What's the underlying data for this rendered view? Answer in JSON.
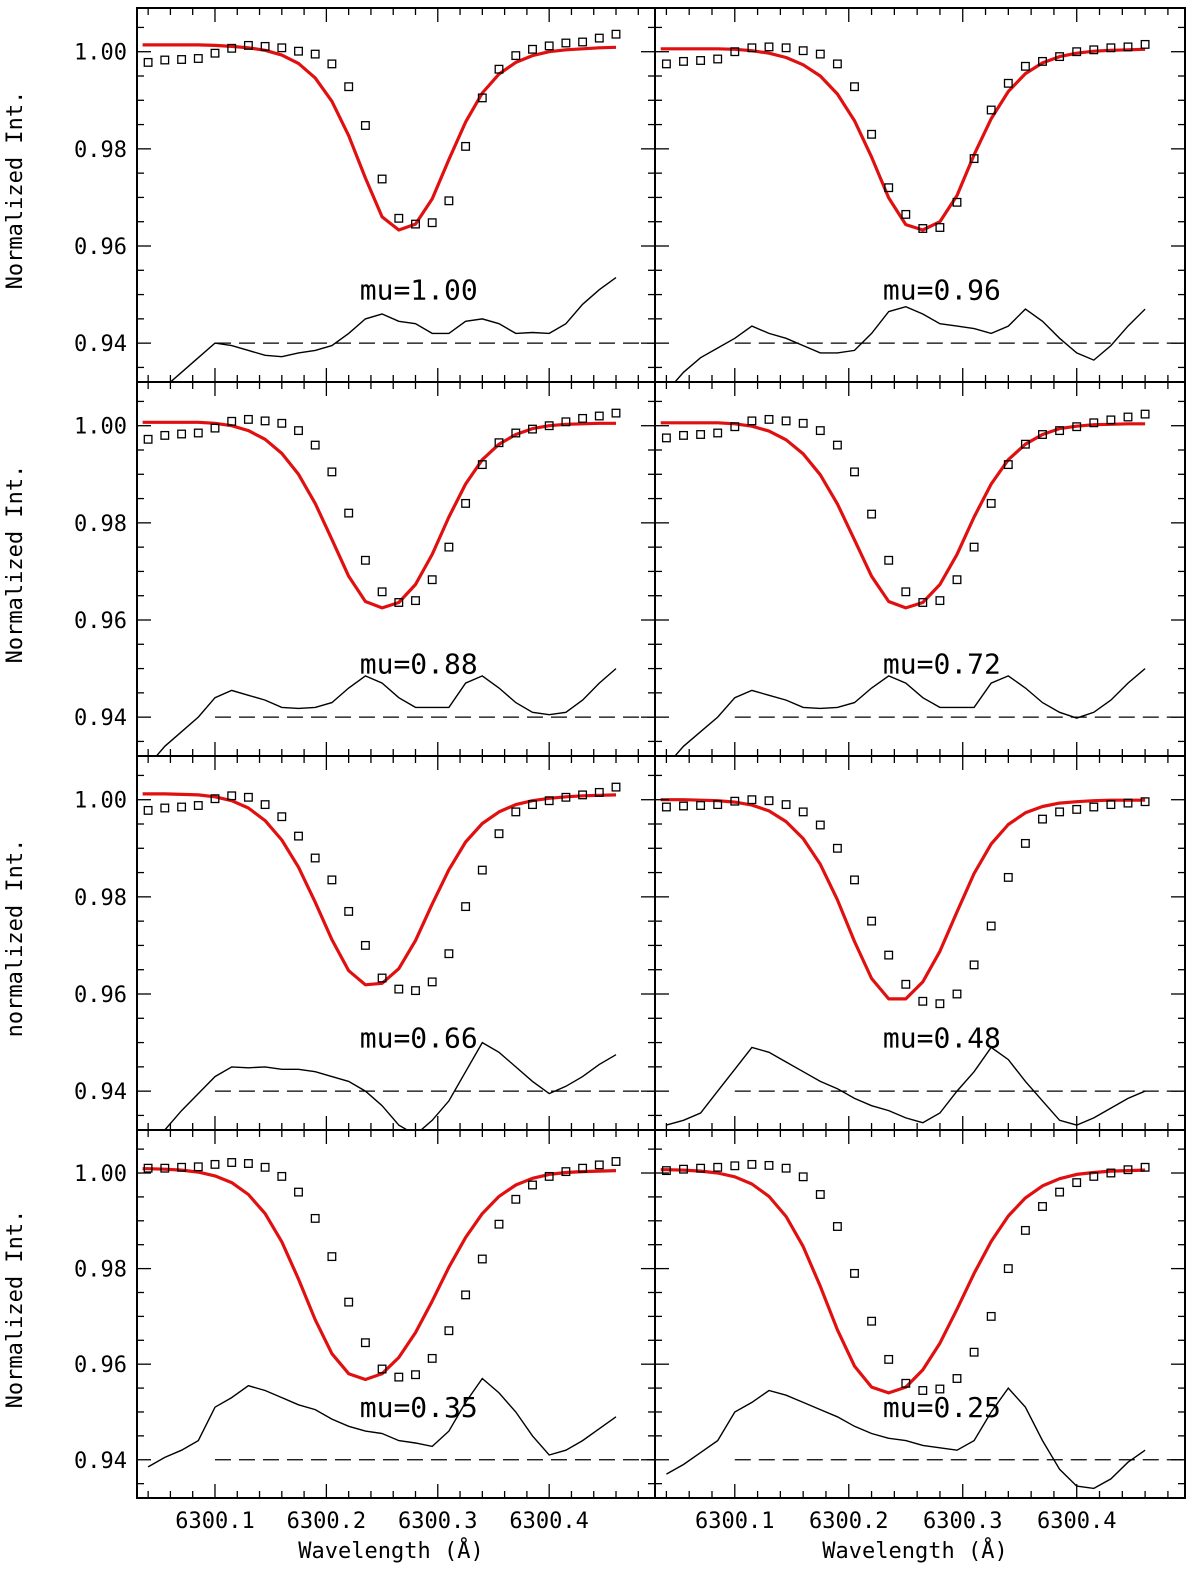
{
  "chart_data": {
    "type": "line",
    "layout": "4 rows x 2 columns",
    "xlabel": "Wavelength (Å)",
    "ylabel_left": [
      "Normalized Int.",
      "Normalized Int.",
      "normalized Int.",
      "Normalized Int."
    ],
    "xlim": [
      6300.03,
      6300.495
    ],
    "ylim": [
      0.932,
      1.009
    ],
    "x_ticks": [
      6300.1,
      6300.2,
      6300.3,
      6300.4
    ],
    "x_tick_labels": [
      "6300.1",
      "6300.2",
      "6300.3",
      "6300.4"
    ],
    "y_ticks": [
      0.94,
      0.96,
      0.98,
      1.0
    ],
    "y_tick_labels": [
      "0.94",
      "0.96",
      "0.98",
      "1.00"
    ],
    "reference_line_y": 0.94,
    "colors": {
      "fit": "#e01010",
      "observed": "#000000",
      "residual": "#000000",
      "reference": "#000000"
    },
    "x": [
      6300.04,
      6300.055,
      6300.07,
      6300.085,
      6300.1,
      6300.115,
      6300.13,
      6300.145,
      6300.16,
      6300.175,
      6300.19,
      6300.205,
      6300.22,
      6300.235,
      6300.25,
      6300.265,
      6300.28,
      6300.295,
      6300.31,
      6300.325,
      6300.34,
      6300.355,
      6300.37,
      6300.385,
      6300.4,
      6300.415,
      6300.43,
      6300.445,
      6300.46
    ],
    "panels": [
      {
        "label": "mu=1.00",
        "observed": [
          0.9978,
          0.9983,
          0.9984,
          0.9986,
          0.9997,
          1.0007,
          1.0013,
          1.0011,
          1.0008,
          1.0001,
          0.9995,
          0.9975,
          0.9928,
          0.9848,
          0.9738,
          0.9657,
          0.9645,
          0.9648,
          0.9693,
          0.9805,
          0.9905,
          0.9964,
          0.9992,
          1.0005,
          1.0012,
          1.0018,
          1.002,
          1.0028,
          1.0036
        ],
        "fit": [
          1.0014,
          1.0014,
          1.0014,
          1.0014,
          1.0013,
          1.0011,
          1.0008,
          1.0003,
          0.9993,
          0.9976,
          0.9946,
          0.9898,
          0.9827,
          0.974,
          0.966,
          0.9633,
          0.9645,
          0.9697,
          0.9778,
          0.9855,
          0.9915,
          0.9954,
          0.9978,
          0.9992,
          1.0,
          1.0004,
          1.0006,
          1.0008,
          1.0009
        ],
        "residual": [
          0.927,
          0.931,
          0.934,
          0.937,
          0.94,
          0.9395,
          0.9385,
          0.9375,
          0.9372,
          0.938,
          0.9385,
          0.9395,
          0.942,
          0.945,
          0.946,
          0.9445,
          0.944,
          0.942,
          0.942,
          0.9445,
          0.945,
          0.944,
          0.942,
          0.9422,
          0.942,
          0.944,
          0.948,
          0.951,
          0.9535
        ]
      },
      {
        "label": "mu=0.96",
        "observed": [
          0.9975,
          0.998,
          0.9982,
          0.9985,
          1.0,
          1.0008,
          1.001,
          1.0008,
          1.0002,
          0.9995,
          0.9975,
          0.9928,
          0.983,
          0.972,
          0.9665,
          0.9636,
          0.9638,
          0.969,
          0.978,
          0.988,
          0.9935,
          0.997,
          0.998,
          0.999,
          1.0,
          1.0004,
          1.0008,
          1.001,
          1.0015
        ],
        "fit": [
          1.0006,
          1.0006,
          1.0006,
          1.0006,
          1.0005,
          1.0002,
          0.9997,
          0.9988,
          0.9973,
          0.995,
          0.9913,
          0.9858,
          0.9783,
          0.9699,
          0.9644,
          0.9633,
          0.965,
          0.9704,
          0.9788,
          0.9862,
          0.9918,
          0.9955,
          0.9977,
          0.999,
          0.9997,
          1.0001,
          1.0003,
          1.0004,
          1.0005
        ],
        "residual": [
          0.93,
          0.934,
          0.937,
          0.939,
          0.941,
          0.9435,
          0.942,
          0.941,
          0.9395,
          0.938,
          0.938,
          0.9385,
          0.942,
          0.9465,
          0.9475,
          0.946,
          0.944,
          0.9435,
          0.943,
          0.942,
          0.9435,
          0.947,
          0.9445,
          0.941,
          0.938,
          0.9365,
          0.9395,
          0.9435,
          0.947
        ]
      },
      {
        "label": "mu=0.88",
        "observed": [
          0.9972,
          0.998,
          0.9983,
          0.9985,
          0.9995,
          1.0009,
          1.0013,
          1.001,
          1.0005,
          0.999,
          0.996,
          0.9905,
          0.982,
          0.9723,
          0.9658,
          0.9636,
          0.964,
          0.9683,
          0.975,
          0.984,
          0.992,
          0.9965,
          0.9985,
          0.9993,
          1.0,
          1.0008,
          1.0015,
          1.002,
          1.0026
        ],
        "fit": [
          1.0007,
          1.0007,
          1.0007,
          1.0007,
          1.0005,
          1.0,
          0.999,
          0.9972,
          0.9943,
          0.99,
          0.984,
          0.9766,
          0.969,
          0.9638,
          0.9625,
          0.9636,
          0.9673,
          0.9735,
          0.9812,
          0.988,
          0.993,
          0.9962,
          0.9982,
          0.9994,
          1.0,
          1.0003,
          1.0004,
          1.0005,
          1.0005
        ],
        "residual": [
          0.93,
          0.934,
          0.937,
          0.94,
          0.944,
          0.9455,
          0.9445,
          0.9435,
          0.942,
          0.9418,
          0.942,
          0.943,
          0.946,
          0.9485,
          0.947,
          0.944,
          0.942,
          0.942,
          0.942,
          0.947,
          0.9485,
          0.946,
          0.943,
          0.941,
          0.9405,
          0.941,
          0.9435,
          0.947,
          0.95
        ]
      },
      {
        "label": "mu=0.72",
        "observed": [
          0.9975,
          0.998,
          0.9982,
          0.9985,
          0.9998,
          1.001,
          1.0013,
          1.001,
          1.0005,
          0.999,
          0.996,
          0.9905,
          0.9818,
          0.9723,
          0.9658,
          0.9636,
          0.964,
          0.9683,
          0.975,
          0.984,
          0.992,
          0.9962,
          0.9982,
          0.999,
          0.9998,
          1.0006,
          1.0012,
          1.0018,
          1.0024
        ],
        "fit": [
          1.0006,
          1.0006,
          1.0006,
          1.0006,
          1.0004,
          0.9999,
          0.9989,
          0.9971,
          0.9942,
          0.9899,
          0.9839,
          0.9765,
          0.969,
          0.9638,
          0.9625,
          0.9636,
          0.9673,
          0.9735,
          0.9812,
          0.988,
          0.993,
          0.9962,
          0.9982,
          0.9994,
          0.9999,
          1.0002,
          1.0003,
          1.0004,
          1.0004
        ],
        "residual": [
          0.93,
          0.934,
          0.937,
          0.94,
          0.944,
          0.9455,
          0.9445,
          0.9435,
          0.942,
          0.9418,
          0.942,
          0.943,
          0.946,
          0.9485,
          0.947,
          0.944,
          0.942,
          0.942,
          0.942,
          0.947,
          0.9485,
          0.946,
          0.943,
          0.941,
          0.9398,
          0.941,
          0.9435,
          0.947,
          0.95
        ]
      },
      {
        "label": "mu=0.66",
        "observed": [
          0.9978,
          0.9983,
          0.9985,
          0.9988,
          1.0002,
          1.0008,
          1.0005,
          0.999,
          0.9965,
          0.9925,
          0.988,
          0.9835,
          0.977,
          0.97,
          0.9633,
          0.961,
          0.9607,
          0.9625,
          0.9683,
          0.978,
          0.9855,
          0.993,
          0.9975,
          0.999,
          0.9998,
          1.0005,
          1.001,
          1.0015,
          1.0026
        ],
        "fit": [
          1.0012,
          1.0012,
          1.0011,
          1.001,
          1.0006,
          0.9998,
          0.9983,
          0.9957,
          0.9917,
          0.9861,
          0.9789,
          0.9712,
          0.9648,
          0.9619,
          0.9622,
          0.9652,
          0.971,
          0.9785,
          0.9856,
          0.9913,
          0.9951,
          0.9975,
          0.999,
          0.9998,
          1.0003,
          1.0006,
          1.0008,
          1.0009,
          1.001
        ],
        "residual": [
          0.928,
          0.932,
          0.936,
          0.9395,
          0.943,
          0.945,
          0.9448,
          0.945,
          0.9445,
          0.9445,
          0.944,
          0.943,
          0.942,
          0.94,
          0.937,
          0.933,
          0.931,
          0.934,
          0.938,
          0.944,
          0.95,
          0.948,
          0.945,
          0.942,
          0.9395,
          0.941,
          0.943,
          0.9455,
          0.9475
        ]
      },
      {
        "label": "mu=0.48",
        "observed": [
          0.9985,
          0.9987,
          0.9988,
          0.999,
          0.9997,
          1.0,
          0.9998,
          0.999,
          0.9975,
          0.9948,
          0.99,
          0.9835,
          0.975,
          0.968,
          0.962,
          0.9585,
          0.958,
          0.96,
          0.966,
          0.974,
          0.984,
          0.991,
          0.996,
          0.9975,
          0.998,
          0.9985,
          0.999,
          0.9993,
          0.9996
        ],
        "fit": [
          1.0,
          1.0,
          0.9999,
          0.9998,
          0.9995,
          0.9989,
          0.9977,
          0.9955,
          0.992,
          0.9867,
          0.9794,
          0.9708,
          0.9632,
          0.959,
          0.959,
          0.9625,
          0.9688,
          0.9769,
          0.9848,
          0.9909,
          0.9949,
          0.9973,
          0.9986,
          0.9993,
          0.9996,
          0.9998,
          0.9999,
          0.9999,
          0.9999
        ],
        "residual": [
          0.933,
          0.934,
          0.9355,
          0.94,
          0.9445,
          0.949,
          0.948,
          0.946,
          0.944,
          0.942,
          0.9405,
          0.9385,
          0.937,
          0.936,
          0.9345,
          0.9335,
          0.9355,
          0.94,
          0.944,
          0.949,
          0.9465,
          0.942,
          0.938,
          0.934,
          0.933,
          0.9345,
          0.9365,
          0.9385,
          0.94
        ]
      },
      {
        "label": "mu=0.35",
        "observed": [
          1.001,
          1.001,
          1.0012,
          1.0013,
          1.0018,
          1.0022,
          1.002,
          1.0012,
          0.9993,
          0.996,
          0.9905,
          0.9825,
          0.973,
          0.9645,
          0.959,
          0.9573,
          0.9578,
          0.9612,
          0.967,
          0.9745,
          0.982,
          0.9893,
          0.9945,
          0.9975,
          0.9993,
          1.0003,
          1.001,
          1.0017,
          1.0024
        ],
        "fit": [
          1.0009,
          1.0008,
          1.0006,
          1.0002,
          0.9994,
          0.998,
          0.9955,
          0.9915,
          0.9856,
          0.9778,
          0.9693,
          0.9622,
          0.958,
          0.9568,
          0.958,
          0.9614,
          0.9666,
          0.9732,
          0.9803,
          0.9865,
          0.9915,
          0.9951,
          0.9975,
          0.9989,
          0.9997,
          1.0001,
          1.0003,
          1.0004,
          1.0005
        ],
        "residual": [
          0.9385,
          0.9405,
          0.942,
          0.944,
          0.951,
          0.953,
          0.9555,
          0.9545,
          0.953,
          0.9515,
          0.9505,
          0.9485,
          0.947,
          0.946,
          0.9455,
          0.944,
          0.9435,
          0.9428,
          0.946,
          0.952,
          0.957,
          0.954,
          0.95,
          0.945,
          0.941,
          0.942,
          0.944,
          0.9465,
          0.949
        ]
      },
      {
        "label": "mu=0.25",
        "observed": [
          1.0005,
          1.0008,
          1.001,
          1.0012,
          1.0015,
          1.0018,
          1.0016,
          1.001,
          0.9992,
          0.9955,
          0.9888,
          0.979,
          0.969,
          0.961,
          0.956,
          0.9545,
          0.9548,
          0.957,
          0.9625,
          0.97,
          0.98,
          0.988,
          0.993,
          0.996,
          0.998,
          0.9993,
          1.0,
          1.0007,
          1.0012
        ],
        "fit": [
          1.0007,
          1.0006,
          1.0004,
          1.0,
          0.9992,
          0.9977,
          0.9951,
          0.9909,
          0.9846,
          0.9763,
          0.9672,
          0.9596,
          0.9552,
          0.954,
          0.9552,
          0.9588,
          0.9644,
          0.9715,
          0.979,
          0.9857,
          0.991,
          0.9948,
          0.9973,
          0.9988,
          0.9997,
          1.0001,
          1.0004,
          1.0005,
          1.0006
        ],
        "residual": [
          0.937,
          0.939,
          0.9415,
          0.944,
          0.95,
          0.952,
          0.9545,
          0.9535,
          0.952,
          0.9505,
          0.949,
          0.947,
          0.9455,
          0.9445,
          0.944,
          0.943,
          0.9425,
          0.942,
          0.944,
          0.95,
          0.955,
          0.951,
          0.944,
          0.938,
          0.9345,
          0.934,
          0.936,
          0.9395,
          0.942
        ]
      }
    ]
  }
}
